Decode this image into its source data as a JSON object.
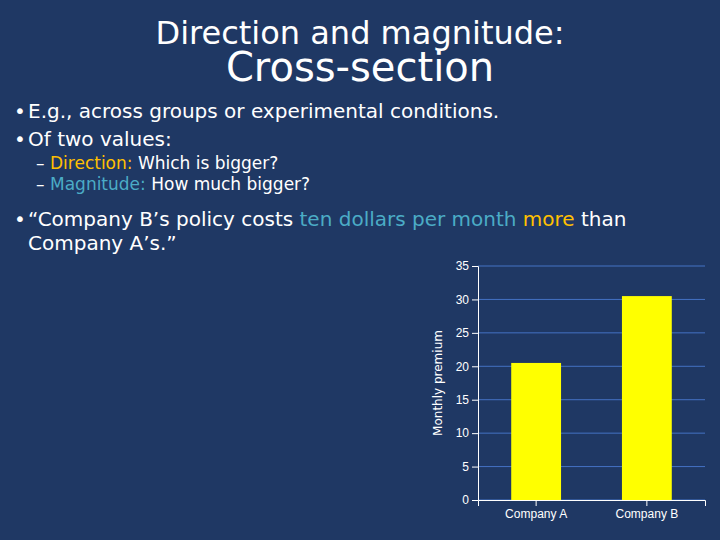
{
  "chart_data": {
    "type": "bar",
    "title": "Direction and magnitude:",
    "subtitle": "Cross-section",
    "annotations": [
      [
        {
          "text": "•",
          "color": "#FFFFFF"
        },
        {
          "text": "E.g., across groups or experimental conditions.",
          "color": "#FFFFFF"
        }
      ],
      [
        {
          "text": "•",
          "color": "#FFFFFF"
        },
        {
          "text": "Of two values:",
          "color": "#FFFFFF"
        }
      ],
      [
        {
          "text": "–",
          "color": "#FFFFFF"
        },
        {
          "text": "Direction:",
          "color": "#FFC000"
        },
        {
          "text": " Which is bigger?",
          "color": "#FFFFFF"
        }
      ],
      [
        {
          "text": "–",
          "color": "#FFFFFF"
        },
        {
          "text": "Magnitude:",
          "color": "#4BACC6"
        },
        {
          "text": " How much bigger?",
          "color": "#FFFFFF"
        }
      ],
      [
        {
          "text": "•",
          "color": "#FFFFFF"
        },
        {
          "text": "“Company B’s policy costs ",
          "color": "#FFFFFF"
        },
        {
          "text": "ten dollars per month ",
          "color": "#4BACC6"
        },
        {
          "text": "more",
          "color": "#FFC000"
        },
        {
          "text": " than",
          "color": "#FFFFFF"
        }
      ],
      [
        {
          "text": "Company A’s.”",
          "color": "#FFFFFF"
        }
      ]
    ],
    "categories": [
      "Company A",
      "Company B"
    ],
    "values": [
      20.5,
      30.5
    ],
    "color": "#FFFF00",
    "ylabel": "Monthly premium",
    "ylim": [
      0,
      35
    ],
    "yticks": [
      0,
      5,
      10,
      15,
      20,
      25,
      30,
      35
    ],
    "grid": true
  }
}
